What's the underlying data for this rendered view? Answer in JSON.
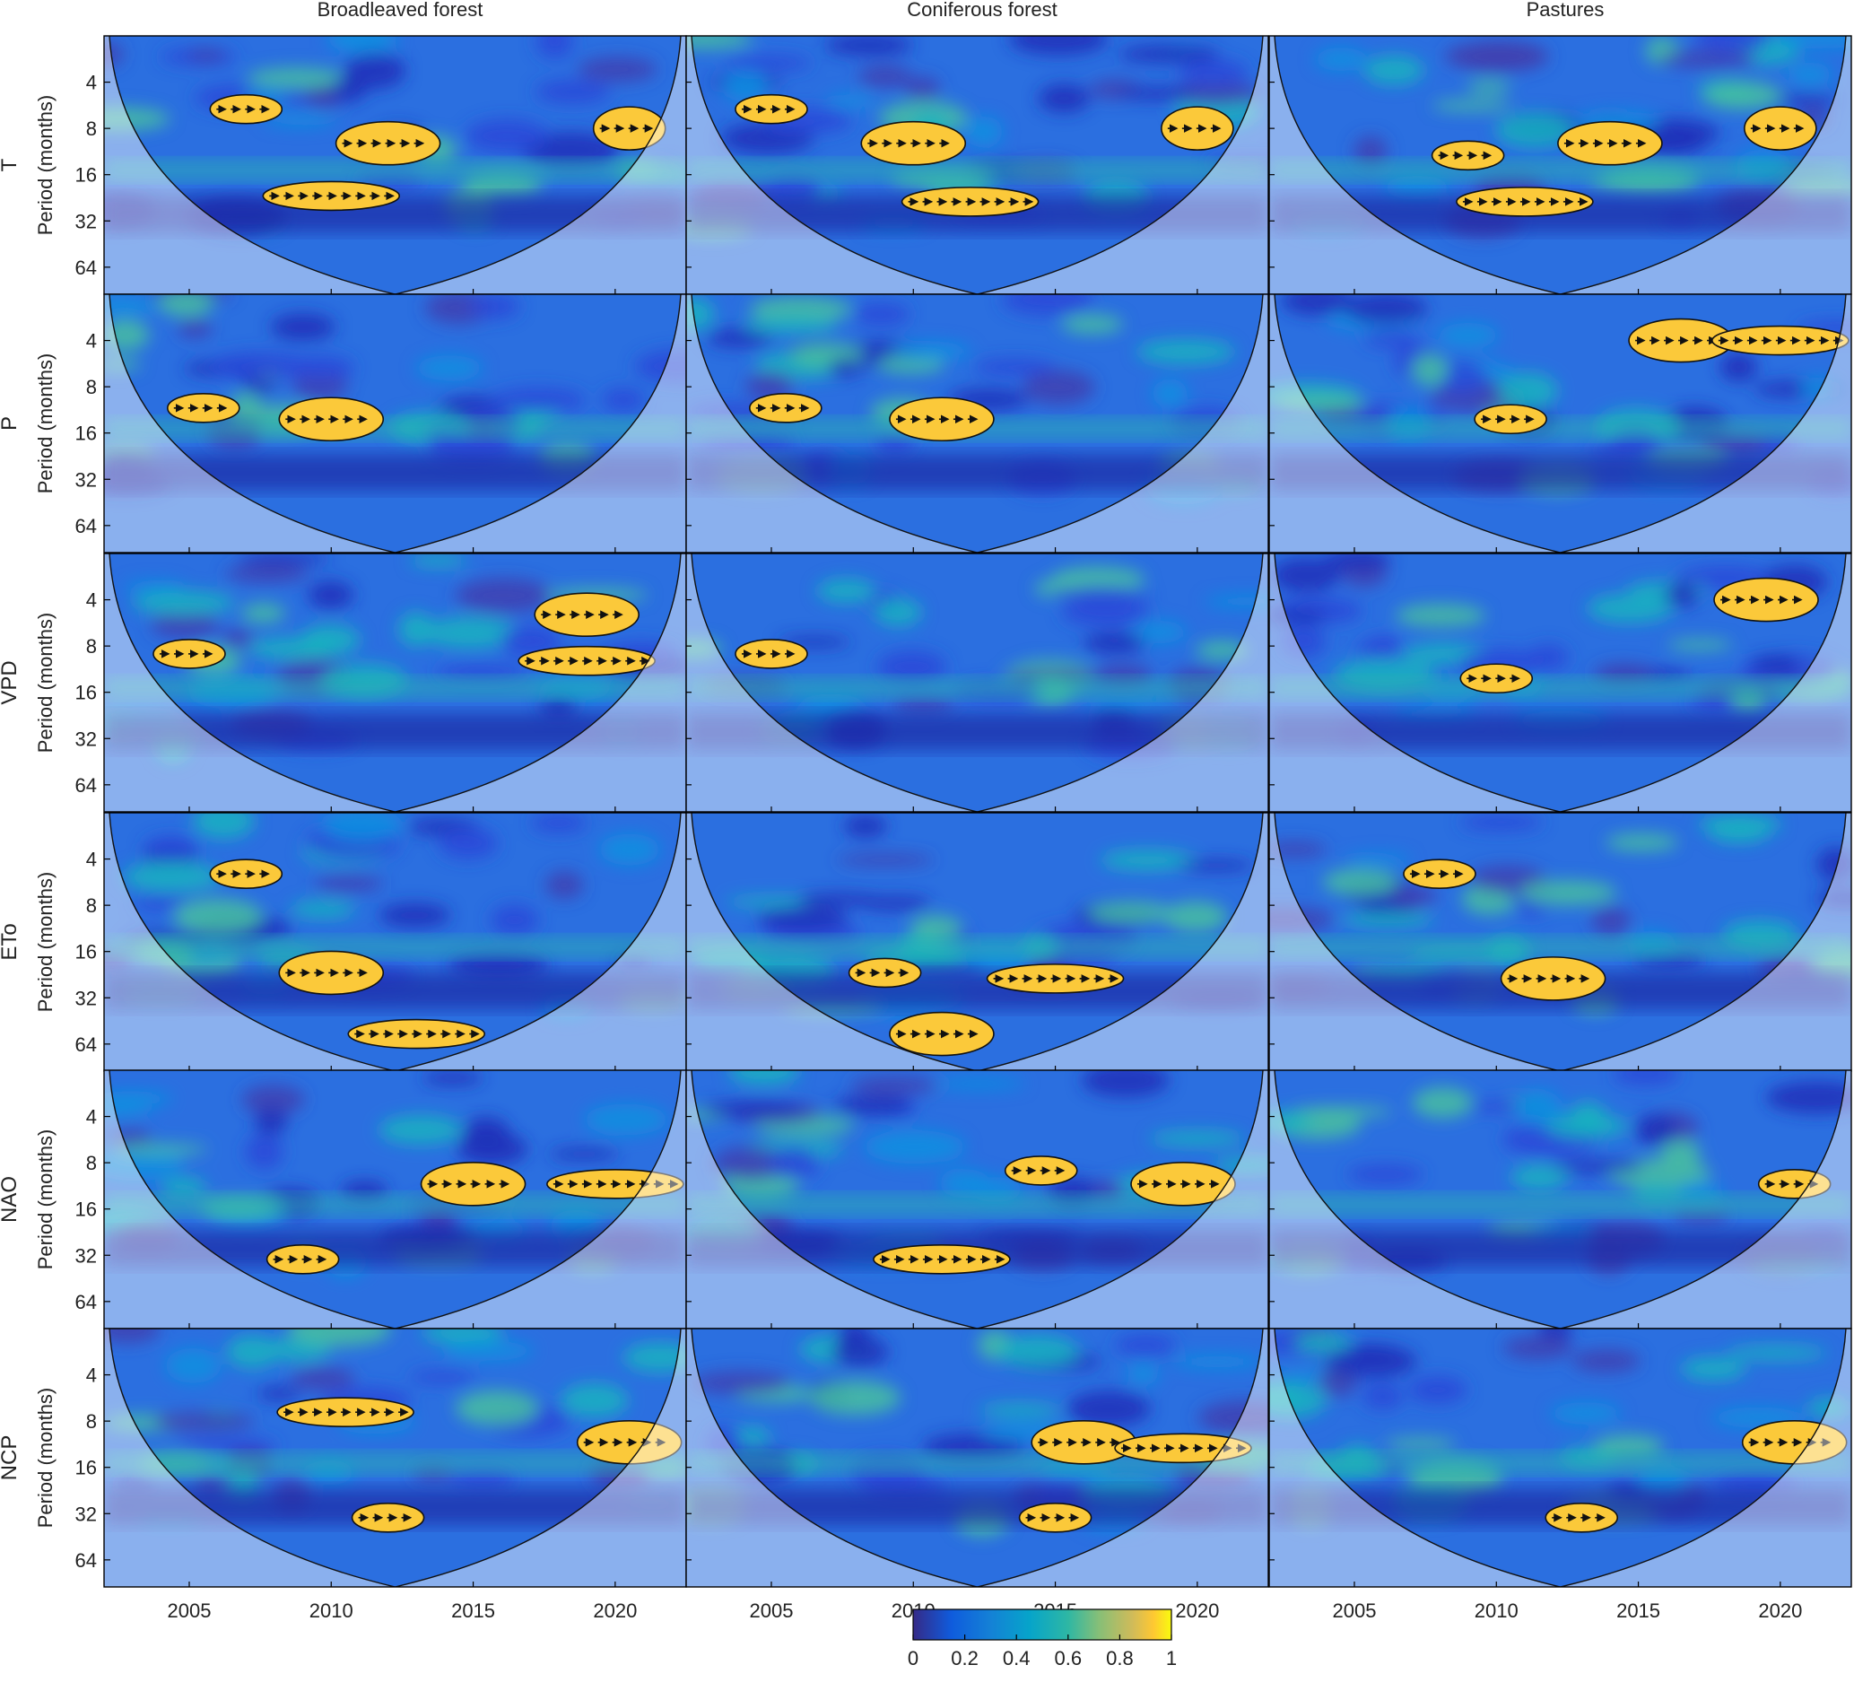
{
  "chart_data": {
    "type": "heatmap",
    "title": "",
    "columns": [
      "Broadleaved forest",
      "Coniferous forest",
      "Pastures"
    ],
    "rows": [
      "T",
      "P",
      "VPD",
      "ETo",
      "NAO",
      "NCP"
    ],
    "ylabel": "Period (months)",
    "xlabel": "",
    "x_range": [
      2002,
      2022.5
    ],
    "x_ticks": [
      2005,
      2010,
      2015,
      2020
    ],
    "y_ticks": [
      4,
      8,
      16,
      32,
      64
    ],
    "y_range_months": [
      2,
      96
    ],
    "y_scale": "log2",
    "colorbar": {
      "ticks": [
        "0",
        "0.2",
        "0.4",
        "0.6",
        "0.8",
        "1"
      ],
      "range": [
        0,
        1
      ],
      "colormap": "parula"
    },
    "significant_regions": [
      {
        "row": "T",
        "col": 0,
        "blobs": [
          [
            2007,
            6
          ],
          [
            2012,
            10
          ],
          [
            2010,
            22
          ],
          [
            2020.5,
            8
          ]
        ]
      },
      {
        "row": "T",
        "col": 1,
        "blobs": [
          [
            2005,
            6
          ],
          [
            2010,
            10
          ],
          [
            2012,
            24
          ],
          [
            2020,
            8
          ]
        ]
      },
      {
        "row": "T",
        "col": 2,
        "blobs": [
          [
            2009,
            12
          ],
          [
            2014,
            10
          ],
          [
            2011,
            24
          ],
          [
            2020,
            8
          ]
        ]
      },
      {
        "row": "P",
        "col": 0,
        "blobs": [
          [
            2005.5,
            11
          ],
          [
            2010,
            13
          ]
        ]
      },
      {
        "row": "P",
        "col": 1,
        "blobs": [
          [
            2005.5,
            11
          ],
          [
            2011,
            13
          ]
        ]
      },
      {
        "row": "P",
        "col": 2,
        "blobs": [
          [
            2010.5,
            13
          ],
          [
            2016.5,
            4
          ],
          [
            2020,
            4
          ]
        ]
      },
      {
        "row": "VPD",
        "col": 0,
        "blobs": [
          [
            2005,
            9
          ],
          [
            2019,
            5
          ],
          [
            2019,
            10
          ]
        ]
      },
      {
        "row": "VPD",
        "col": 1,
        "blobs": [
          [
            2005,
            9
          ]
        ]
      },
      {
        "row": "VPD",
        "col": 2,
        "blobs": [
          [
            2010,
            13
          ],
          [
            2019.5,
            4
          ]
        ]
      },
      {
        "row": "ETo",
        "col": 0,
        "blobs": [
          [
            2007,
            5
          ],
          [
            2010,
            22
          ],
          [
            2013,
            55
          ]
        ]
      },
      {
        "row": "ETo",
        "col": 1,
        "blobs": [
          [
            2009,
            22
          ],
          [
            2011,
            55
          ],
          [
            2015,
            24
          ]
        ]
      },
      {
        "row": "ETo",
        "col": 2,
        "blobs": [
          [
            2008,
            5
          ],
          [
            2012,
            24
          ]
        ]
      },
      {
        "row": "NAO",
        "col": 0,
        "blobs": [
          [
            2009,
            34
          ],
          [
            2015,
            11
          ],
          [
            2020,
            11
          ]
        ]
      },
      {
        "row": "NAO",
        "col": 1,
        "blobs": [
          [
            2014.5,
            9
          ],
          [
            2019.5,
            11
          ],
          [
            2011,
            34
          ]
        ]
      },
      {
        "row": "NAO",
        "col": 2,
        "blobs": [
          [
            2020.5,
            11
          ]
        ]
      },
      {
        "row": "NCP",
        "col": 0,
        "blobs": [
          [
            2012,
            34
          ],
          [
            2020.5,
            11
          ],
          [
            2010.5,
            7
          ]
        ]
      },
      {
        "row": "NCP",
        "col": 1,
        "blobs": [
          [
            2015,
            34
          ],
          [
            2016,
            11
          ],
          [
            2019.5,
            12
          ]
        ]
      },
      {
        "row": "NCP",
        "col": 2,
        "blobs": [
          [
            2013,
            34
          ],
          [
            2020.5,
            11
          ]
        ]
      }
    ]
  }
}
